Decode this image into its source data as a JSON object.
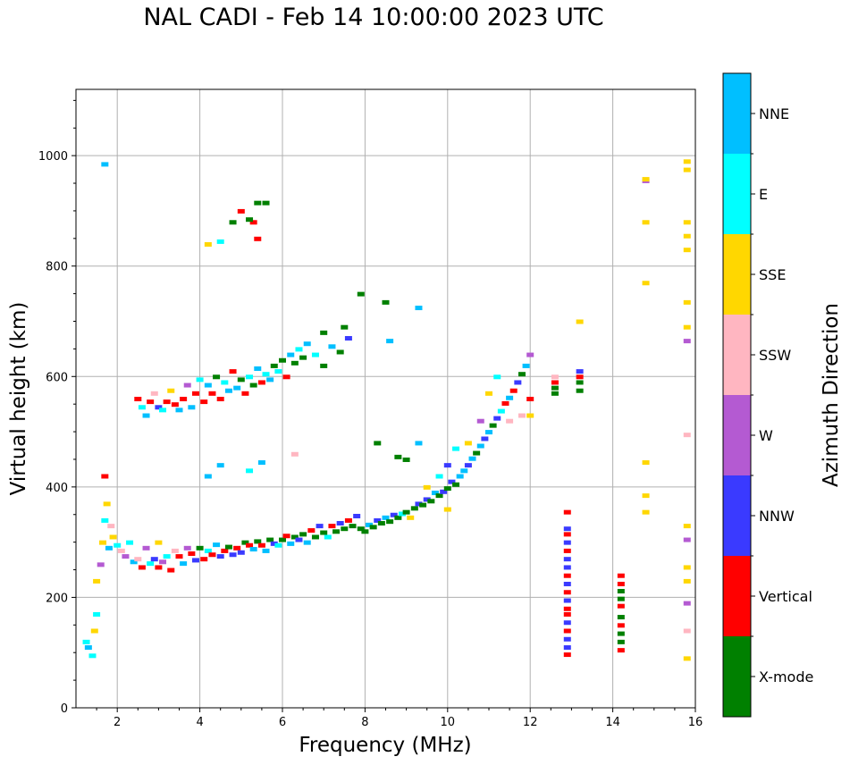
{
  "title": "NAL CADI - Feb 14 10:00:00 2023 UTC",
  "chart_data": {
    "type": "scatter",
    "title": "NAL CADI - Feb 14 10:00:00 2023 UTC",
    "xlabel": "Frequency (MHz)",
    "ylabel": "Virtual height (km)",
    "xlim": [
      1,
      16
    ],
    "ylim": [
      0,
      1120
    ],
    "xticks": [
      2,
      4,
      6,
      8,
      10,
      12,
      14,
      16
    ],
    "yticks": [
      0,
      200,
      400,
      600,
      800,
      1000
    ],
    "grid": true,
    "colorbar": {
      "label": "Azimuth Direction",
      "categories": [
        {
          "name": "X-mode",
          "color": "#008000"
        },
        {
          "name": "Vertical",
          "color": "#ff0000"
        },
        {
          "name": "NNW",
          "color": "#3a3aff"
        },
        {
          "name": "W",
          "color": "#b45ad2"
        },
        {
          "name": "SSW",
          "color": "#ffb6c1"
        },
        {
          "name": "SSE",
          "color": "#ffd700"
        },
        {
          "name": "E",
          "color": "#00ffff"
        },
        {
          "name": "NNE",
          "color": "#00bfff"
        }
      ]
    },
    "points": [
      [
        1.25,
        120,
        "E"
      ],
      [
        1.3,
        110,
        "NNE"
      ],
      [
        1.4,
        95,
        "E"
      ],
      [
        1.45,
        140,
        "SSE"
      ],
      [
        1.5,
        170,
        "E"
      ],
      [
        1.5,
        230,
        "SSE"
      ],
      [
        1.6,
        260,
        "W"
      ],
      [
        1.65,
        300,
        "SSE"
      ],
      [
        1.7,
        340,
        "E"
      ],
      [
        1.7,
        420,
        "Vertical"
      ],
      [
        1.75,
        370,
        "SSE"
      ],
      [
        1.8,
        290,
        "NNE"
      ],
      [
        1.85,
        330,
        "SSW"
      ],
      [
        1.9,
        310,
        "SSE"
      ],
      [
        2.0,
        295,
        "E"
      ],
      [
        2.1,
        285,
        "SSW"
      ],
      [
        2.2,
        275,
        "W"
      ],
      [
        2.3,
        300,
        "E"
      ],
      [
        2.4,
        265,
        "NNE"
      ],
      [
        2.5,
        270,
        "SSW"
      ],
      [
        2.6,
        255,
        "Vertical"
      ],
      [
        2.7,
        290,
        "W"
      ],
      [
        2.8,
        262,
        "E"
      ],
      [
        2.9,
        270,
        "NNW"
      ],
      [
        3.0,
        255,
        "Vertical"
      ],
      [
        3.0,
        300,
        "SSE"
      ],
      [
        3.1,
        265,
        "W"
      ],
      [
        3.2,
        275,
        "E"
      ],
      [
        3.3,
        250,
        "Vertical"
      ],
      [
        3.4,
        285,
        "SSW"
      ],
      [
        3.5,
        275,
        "Vertical"
      ],
      [
        3.6,
        262,
        "NNE"
      ],
      [
        3.7,
        290,
        "W"
      ],
      [
        3.8,
        280,
        "Vertical"
      ],
      [
        3.9,
        268,
        "NNW"
      ],
      [
        4.0,
        290,
        "X-mode"
      ],
      [
        4.1,
        270,
        "Vertical"
      ],
      [
        4.2,
        285,
        "E"
      ],
      [
        4.3,
        278,
        "Vertical"
      ],
      [
        4.4,
        296,
        "NNE"
      ],
      [
        4.5,
        275,
        "NNW"
      ],
      [
        4.6,
        285,
        "Vertical"
      ],
      [
        4.7,
        292,
        "X-mode"
      ],
      [
        4.8,
        278,
        "NNW"
      ],
      [
        4.9,
        290,
        "Vertical"
      ],
      [
        5.0,
        282,
        "NNW"
      ],
      [
        5.1,
        300,
        "X-mode"
      ],
      [
        5.2,
        295,
        "Vertical"
      ],
      [
        5.3,
        288,
        "NNE"
      ],
      [
        5.4,
        302,
        "X-mode"
      ],
      [
        5.5,
        295,
        "Vertical"
      ],
      [
        5.6,
        285,
        "NNE"
      ],
      [
        5.7,
        305,
        "X-mode"
      ],
      [
        5.8,
        298,
        "NNW"
      ],
      [
        5.9,
        295,
        "E"
      ],
      [
        6.0,
        305,
        "X-mode"
      ],
      [
        6.1,
        312,
        "Vertical"
      ],
      [
        6.2,
        298,
        "NNE"
      ],
      [
        6.3,
        310,
        "X-mode"
      ],
      [
        6.4,
        305,
        "NNW"
      ],
      [
        6.5,
        315,
        "X-mode"
      ],
      [
        6.6,
        300,
        "NNE"
      ],
      [
        6.7,
        322,
        "Vertical"
      ],
      [
        6.8,
        310,
        "X-mode"
      ],
      [
        6.9,
        330,
        "NNW"
      ],
      [
        7.0,
        318,
        "X-mode"
      ],
      [
        7.1,
        310,
        "E"
      ],
      [
        7.2,
        330,
        "Vertical"
      ],
      [
        7.3,
        320,
        "X-mode"
      ],
      [
        7.4,
        335,
        "NNW"
      ],
      [
        7.5,
        325,
        "X-mode"
      ],
      [
        7.6,
        340,
        "Vertical"
      ],
      [
        7.7,
        330,
        "X-mode"
      ],
      [
        7.8,
        348,
        "NNW"
      ],
      [
        7.9,
        325,
        "X-mode"
      ],
      [
        8.0,
        320,
        "X-mode"
      ],
      [
        8.1,
        332,
        "NNE"
      ],
      [
        8.2,
        328,
        "X-mode"
      ],
      [
        8.3,
        340,
        "NNW"
      ],
      [
        8.4,
        335,
        "X-mode"
      ],
      [
        8.5,
        345,
        "NNE"
      ],
      [
        8.6,
        338,
        "X-mode"
      ],
      [
        8.7,
        350,
        "NNW"
      ],
      [
        8.8,
        345,
        "X-mode"
      ],
      [
        8.9,
        352,
        "E"
      ],
      [
        9.0,
        355,
        "X-mode"
      ],
      [
        9.1,
        345,
        "SSE"
      ],
      [
        9.2,
        362,
        "X-mode"
      ],
      [
        9.3,
        370,
        "NNW"
      ],
      [
        9.4,
        368,
        "X-mode"
      ],
      [
        9.5,
        378,
        "NNW"
      ],
      [
        9.6,
        375,
        "X-mode"
      ],
      [
        9.7,
        390,
        "NNE"
      ],
      [
        9.8,
        385,
        "X-mode"
      ],
      [
        9.9,
        392,
        "NNW"
      ],
      [
        10.0,
        360,
        "SSE"
      ],
      [
        10.0,
        398,
        "X-mode"
      ],
      [
        10.1,
        410,
        "NNW"
      ],
      [
        10.2,
        405,
        "X-mode"
      ],
      [
        10.3,
        420,
        "NNE"
      ],
      [
        10.4,
        430,
        "NNE"
      ],
      [
        10.5,
        440,
        "NNW"
      ],
      [
        10.6,
        452,
        "NNE"
      ],
      [
        10.7,
        462,
        "X-mode"
      ],
      [
        10.8,
        475,
        "NNE"
      ],
      [
        10.9,
        488,
        "NNW"
      ],
      [
        11.0,
        500,
        "NNE"
      ],
      [
        11.1,
        512,
        "X-mode"
      ],
      [
        11.2,
        525,
        "NNW"
      ],
      [
        11.3,
        538,
        "E"
      ],
      [
        11.4,
        552,
        "Vertical"
      ],
      [
        11.5,
        562,
        "NNE"
      ],
      [
        11.6,
        575,
        "Vertical"
      ],
      [
        11.7,
        590,
        "NNW"
      ],
      [
        11.8,
        605,
        "X-mode"
      ],
      [
        11.9,
        620,
        "NNE"
      ],
      [
        12.0,
        640,
        "W"
      ],
      [
        12.0,
        560,
        "Vertical"
      ],
      [
        12.0,
        530,
        "SSE"
      ],
      [
        11.5,
        520,
        "SSW"
      ],
      [
        11.8,
        530,
        "SSW"
      ],
      [
        11.2,
        600,
        "E"
      ],
      [
        11.0,
        570,
        "SSE"
      ],
      [
        10.8,
        520,
        "W"
      ],
      [
        10.5,
        480,
        "SSE"
      ],
      [
        10.2,
        470,
        "E"
      ],
      [
        10.0,
        440,
        "NNW"
      ],
      [
        9.8,
        420,
        "E"
      ],
      [
        9.5,
        400,
        "SSE"
      ],
      [
        12.6,
        600,
        "SSW"
      ],
      [
        12.6,
        590,
        "Vertical"
      ],
      [
        12.6,
        580,
        "X-mode"
      ],
      [
        12.6,
        570,
        "X-mode"
      ],
      [
        13.2,
        610,
        "NNW"
      ],
      [
        13.2,
        600,
        "Vertical"
      ],
      [
        13.2,
        590,
        "X-mode"
      ],
      [
        13.2,
        575,
        "X-mode"
      ],
      [
        13.2,
        700,
        "SSE"
      ],
      [
        2.5,
        560,
        "Vertical"
      ],
      [
        2.6,
        545,
        "E"
      ],
      [
        2.7,
        530,
        "NNE"
      ],
      [
        2.8,
        555,
        "Vertical"
      ],
      [
        2.9,
        570,
        "SSW"
      ],
      [
        3.0,
        545,
        "NNW"
      ],
      [
        3.1,
        540,
        "E"
      ],
      [
        3.2,
        555,
        "Vertical"
      ],
      [
        3.3,
        575,
        "SSE"
      ],
      [
        3.4,
        550,
        "Vertical"
      ],
      [
        3.5,
        540,
        "NNE"
      ],
      [
        3.6,
        560,
        "Vertical"
      ],
      [
        3.7,
        585,
        "W"
      ],
      [
        3.8,
        545,
        "NNE"
      ],
      [
        3.9,
        570,
        "Vertical"
      ],
      [
        4.0,
        595,
        "E"
      ],
      [
        4.1,
        555,
        "Vertical"
      ],
      [
        4.2,
        585,
        "NNE"
      ],
      [
        4.3,
        570,
        "Vertical"
      ],
      [
        4.4,
        600,
        "X-mode"
      ],
      [
        4.5,
        560,
        "Vertical"
      ],
      [
        4.6,
        590,
        "E"
      ],
      [
        4.7,
        575,
        "NNE"
      ],
      [
        4.8,
        610,
        "Vertical"
      ],
      [
        4.9,
        580,
        "NNE"
      ],
      [
        5.0,
        595,
        "X-mode"
      ],
      [
        5.1,
        570,
        "Vertical"
      ],
      [
        5.2,
        600,
        "E"
      ],
      [
        5.3,
        585,
        "X-mode"
      ],
      [
        5.4,
        615,
        "NNE"
      ],
      [
        5.5,
        590,
        "Vertical"
      ],
      [
        5.6,
        605,
        "E"
      ],
      [
        5.7,
        595,
        "NNE"
      ],
      [
        5.8,
        620,
        "X-mode"
      ],
      [
        5.9,
        610,
        "E"
      ],
      [
        6.0,
        630,
        "X-mode"
      ],
      [
        6.1,
        600,
        "Vertical"
      ],
      [
        6.2,
        640,
        "NNE"
      ],
      [
        6.3,
        625,
        "X-mode"
      ],
      [
        6.4,
        650,
        "E"
      ],
      [
        6.5,
        635,
        "X-mode"
      ],
      [
        6.6,
        660,
        "NNE"
      ],
      [
        6.8,
        640,
        "E"
      ],
      [
        7.0,
        680,
        "X-mode"
      ],
      [
        7.2,
        655,
        "NNE"
      ],
      [
        7.4,
        645,
        "X-mode"
      ],
      [
        7.6,
        670,
        "NNW"
      ],
      [
        7.5,
        690,
        "X-mode"
      ],
      [
        7.9,
        750,
        "X-mode"
      ],
      [
        8.5,
        735,
        "X-mode"
      ],
      [
        9.3,
        725,
        "NNE"
      ],
      [
        8.6,
        665,
        "NNE"
      ],
      [
        7.0,
        620,
        "X-mode"
      ],
      [
        4.2,
        420,
        "NNE"
      ],
      [
        4.5,
        440,
        "NNE"
      ],
      [
        5.2,
        430,
        "E"
      ],
      [
        5.5,
        445,
        "NNE"
      ],
      [
        6.3,
        460,
        "SSW"
      ],
      [
        8.3,
        480,
        "X-mode"
      ],
      [
        8.8,
        455,
        "X-mode"
      ],
      [
        9.0,
        450,
        "X-mode"
      ],
      [
        9.3,
        480,
        "NNE"
      ],
      [
        4.2,
        840,
        "SSE"
      ],
      [
        4.5,
        845,
        "E"
      ],
      [
        4.8,
        880,
        "X-mode"
      ],
      [
        5.0,
        900,
        "Vertical"
      ],
      [
        5.3,
        880,
        "Vertical"
      ],
      [
        5.4,
        915,
        "X-mode"
      ],
      [
        5.6,
        915,
        "X-mode"
      ],
      [
        5.4,
        850,
        "Vertical"
      ],
      [
        5.2,
        885,
        "X-mode"
      ],
      [
        1.7,
        985,
        "NNE"
      ],
      [
        12.9,
        355,
        "Vertical"
      ],
      [
        12.9,
        325,
        "NNW"
      ],
      [
        12.9,
        315,
        "Vertical"
      ],
      [
        12.9,
        300,
        "NNW"
      ],
      [
        12.9,
        285,
        "Vertical"
      ],
      [
        12.9,
        270,
        "NNW"
      ],
      [
        12.9,
        255,
        "NNW"
      ],
      [
        12.9,
        240,
        "Vertical"
      ],
      [
        12.9,
        225,
        "NNW"
      ],
      [
        12.9,
        210,
        "Vertical"
      ],
      [
        12.9,
        195,
        "NNW"
      ],
      [
        12.9,
        180,
        "Vertical"
      ],
      [
        12.9,
        170,
        "Vertical"
      ],
      [
        12.9,
        155,
        "NNW"
      ],
      [
        12.9,
        140,
        "Vertical"
      ],
      [
        12.9,
        125,
        "NNW"
      ],
      [
        12.9,
        110,
        "NNW"
      ],
      [
        12.9,
        97,
        "Vertical"
      ],
      [
        14.2,
        240,
        "Vertical"
      ],
      [
        14.2,
        225,
        "Vertical"
      ],
      [
        14.2,
        212,
        "X-mode"
      ],
      [
        14.2,
        198,
        "X-mode"
      ],
      [
        14.2,
        185,
        "Vertical"
      ],
      [
        14.2,
        165,
        "X-mode"
      ],
      [
        14.2,
        150,
        "Vertical"
      ],
      [
        14.2,
        135,
        "X-mode"
      ],
      [
        14.2,
        120,
        "X-mode"
      ],
      [
        14.2,
        105,
        "Vertical"
      ],
      [
        14.8,
        955,
        "W"
      ],
      [
        14.8,
        958,
        "SSE"
      ],
      [
        14.8,
        880,
        "SSE"
      ],
      [
        14.8,
        770,
        "SSE"
      ],
      [
        14.8,
        445,
        "SSE"
      ],
      [
        14.8,
        385,
        "SSE"
      ],
      [
        14.8,
        355,
        "SSE"
      ],
      [
        15.8,
        990,
        "SSE"
      ],
      [
        15.8,
        975,
        "SSE"
      ],
      [
        15.8,
        880,
        "SSE"
      ],
      [
        15.8,
        855,
        "SSE"
      ],
      [
        15.8,
        830,
        "SSE"
      ],
      [
        15.8,
        735,
        "SSE"
      ],
      [
        15.8,
        690,
        "SSE"
      ],
      [
        15.8,
        665,
        "W"
      ],
      [
        15.8,
        495,
        "SSW"
      ],
      [
        15.8,
        330,
        "SSE"
      ],
      [
        15.8,
        305,
        "W"
      ],
      [
        15.8,
        255,
        "SSE"
      ],
      [
        15.8,
        230,
        "SSE"
      ],
      [
        15.8,
        190,
        "W"
      ],
      [
        15.8,
        140,
        "SSW"
      ],
      [
        15.8,
        90,
        "SSE"
      ]
    ]
  }
}
